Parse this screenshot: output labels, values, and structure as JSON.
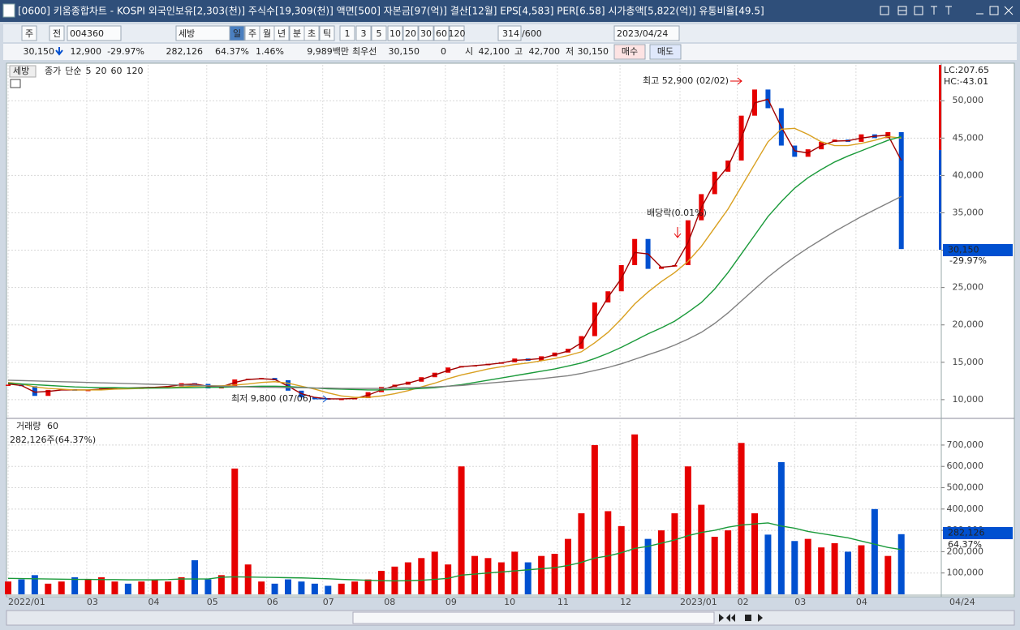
{
  "window": {
    "title": "[0600] 키움종합차트 - KOSPI 외국인보유[2,303(천)] 주식수[19,309(천)] 액면[500] 자본금[97(억)] 결산[12월] EPS[4,583] PER[6.58] 시가총액[5,822(억)] 유통비율[49.5]"
  },
  "toolbar": {
    "items": [
      "주",
      "전",
      "004360",
      "세방",
      "일",
      "주",
      "월",
      "년",
      "분",
      "초",
      "틱",
      "1",
      "3",
      "5",
      "10",
      "20",
      "30",
      "60",
      "120",
      "314",
      "/600",
      "2023/04/24"
    ]
  },
  "quote_bar": {
    "items": [
      "30,150",
      "12,900",
      "-29.97%",
      "282,126",
      "64.37%",
      "1.46%",
      "9,989백만",
      "최우선",
      "30,150",
      "0",
      "시",
      "42,100",
      "고",
      "42,700",
      "저",
      "30,150",
      "매수",
      "매도"
    ]
  },
  "chart_data": [
    {
      "type": "candlestick",
      "stock_tag": "세방",
      "legend_label": "단순",
      "xlim": [
        0,
        70
      ],
      "ylim": [
        7600,
        54800
      ],
      "yticks": [
        {
          "value": 10000,
          "label": "10,000"
        },
        {
          "value": 15000,
          "label": "15,000"
        },
        {
          "value": 20000,
          "label": "20,000"
        },
        {
          "value": 25000,
          "label": "25,000"
        },
        {
          "value": 30000,
          "label": "30,000"
        },
        {
          "value": 35000,
          "label": "35,000"
        },
        {
          "value": 40000,
          "label": "40,000"
        },
        {
          "value": 45000,
          "label": "45,000"
        },
        {
          "value": 50000,
          "label": "50,000"
        }
      ],
      "grid": true,
      "up_color": "#e60000",
      "down_color": "#0050d0",
      "right_labels": [
        "LC:207.65",
        "HC:-43.01",
        "30,150",
        "-29.97%"
      ],
      "annotations": [
        "최고 52,900 (02/02)",
        "최저 9,800 (07/06)",
        "배당락(0.01%)"
      ],
      "series": [
        {
          "name": "종가",
          "color": "#e60000",
          "values": [
            12000,
            11800,
            10500,
            11300,
            11400,
            11200,
            11300,
            11500,
            11600,
            11500,
            11600,
            11700,
            11800,
            12200,
            12100,
            11500,
            11800,
            12700,
            12800,
            12900,
            12600,
            11200,
            10300,
            10200,
            10000,
            10100,
            10200,
            11000,
            11700,
            12000,
            12400,
            13000,
            13600,
            14300,
            14500,
            14600,
            14800,
            15000,
            15500,
            15200,
            15800,
            16300,
            16800,
            18500,
            23000,
            24500,
            28000,
            31500,
            27500,
            27800,
            28000,
            34000,
            37500,
            40500,
            42000,
            48000,
            51500,
            49000,
            44000,
            42500,
            43500,
            44500,
            44800,
            44500,
            45500,
            45000,
            45800,
            30150
          ]
        },
        {
          "name": "5",
          "color": "#a00000",
          "values": [
            12100,
            11900,
            11000,
            11100,
            11300,
            11300,
            11300,
            11400,
            11550,
            11550,
            11600,
            11650,
            11750,
            12000,
            12100,
            11800,
            11700,
            12300,
            12700,
            12800,
            12700,
            11800,
            10800,
            10300,
            10100,
            10100,
            10150,
            10600,
            11300,
            11850,
            12200,
            12700,
            13300,
            13900,
            14400,
            14550,
            14700,
            14900,
            15250,
            15350,
            15500,
            16000,
            16500,
            17600,
            20700,
            23700,
            26200,
            29700,
            29500,
            27700,
            27900,
            31000,
            35700,
            39000,
            41200,
            45000,
            49700,
            50200,
            46500,
            43300,
            43000,
            44000,
            44600,
            44650,
            45000,
            45250,
            45400,
            42000
          ]
        },
        {
          "name": "20",
          "color": "#d9a020",
          "values": [
            12300,
            12100,
            11700,
            11500,
            11400,
            11300,
            11300,
            11300,
            11400,
            11450,
            11500,
            11550,
            11600,
            11700,
            11800,
            11850,
            11850,
            11950,
            12100,
            12300,
            12400,
            12200,
            11800,
            11400,
            10900,
            10500,
            10300,
            10300,
            10500,
            10800,
            11200,
            11700,
            12200,
            12800,
            13300,
            13700,
            14100,
            14400,
            14700,
            14900,
            15200,
            15500,
            15900,
            16400,
            17600,
            19000,
            20800,
            22800,
            24400,
            25800,
            27000,
            28500,
            30500,
            33000,
            35500,
            38500,
            41500,
            44500,
            46200,
            46300,
            45500,
            44500,
            44000,
            44000,
            44300,
            44700,
            45200,
            45000
          ]
        },
        {
          "name": "60",
          "color": "#1a9a3a",
          "values": [
            12200,
            12100,
            12000,
            11900,
            11800,
            11700,
            11650,
            11600,
            11600,
            11550,
            11550,
            11550,
            11550,
            11600,
            11600,
            11650,
            11650,
            11700,
            11750,
            11800,
            11800,
            11750,
            11650,
            11550,
            11450,
            11400,
            11350,
            11300,
            11300,
            11350,
            11400,
            11500,
            11600,
            11800,
            12000,
            12300,
            12600,
            12900,
            13200,
            13500,
            13800,
            14100,
            14500,
            14900,
            15500,
            16200,
            17000,
            17900,
            18800,
            19600,
            20500,
            21700,
            23000,
            24800,
            27000,
            29500,
            32000,
            34500,
            36500,
            38300,
            39700,
            40800,
            41800,
            42600,
            43300,
            44000,
            44700,
            45200
          ]
        },
        {
          "name": "120",
          "color": "#808080",
          "values": [
            12600,
            12550,
            12500,
            12450,
            12400,
            12350,
            12300,
            12250,
            12200,
            12150,
            12100,
            12050,
            12000,
            11950,
            11900,
            11850,
            11800,
            11750,
            11700,
            11650,
            11650,
            11600,
            11600,
            11550,
            11550,
            11500,
            11500,
            11500,
            11500,
            11550,
            11600,
            11650,
            11700,
            11800,
            11900,
            12050,
            12200,
            12350,
            12500,
            12650,
            12800,
            13000,
            13200,
            13500,
            13900,
            14300,
            14800,
            15400,
            16000,
            16600,
            17300,
            18100,
            19000,
            20200,
            21600,
            23200,
            24800,
            26400,
            27800,
            29100,
            30300,
            31400,
            32500,
            33500,
            34500,
            35400,
            36300,
            37200
          ]
        }
      ]
    },
    {
      "type": "bar",
      "xlim": [
        0,
        70
      ],
      "ylim": [
        0,
        810000
      ],
      "yticks": [
        {
          "value": 100000,
          "label": "100,000"
        },
        {
          "value": 200000,
          "label": "200,000"
        },
        {
          "value": 300000,
          "label": "300,000"
        },
        {
          "value": 400000,
          "label": "400,000"
        },
        {
          "value": 500000,
          "label": "500,000"
        },
        {
          "value": 600000,
          "label": "600,000"
        },
        {
          "value": 700000,
          "label": "700,000"
        }
      ],
      "xticks": [
        {
          "value": 0,
          "label": "2022/01"
        },
        {
          "value": 5.9,
          "label": "03"
        },
        {
          "value": 10.5,
          "label": "04"
        },
        {
          "value": 14.9,
          "label": "05"
        },
        {
          "value": 19.4,
          "label": "06"
        },
        {
          "value": 23.6,
          "label": "07"
        },
        {
          "value": 28.2,
          "label": "08"
        },
        {
          "value": 32.8,
          "label": "09"
        },
        {
          "value": 37.2,
          "label": "10"
        },
        {
          "value": 41.2,
          "label": "11"
        },
        {
          "value": 45.9,
          "label": "12"
        },
        {
          "value": 50.4,
          "label": "2023/01"
        },
        {
          "value": 54.7,
          "label": "02"
        },
        {
          "value": 59,
          "label": "03"
        },
        {
          "value": 63.6,
          "label": "04"
        }
      ],
      "cursor_date": "04/24",
      "grid": true,
      "summary": "282,126주(64.37%)",
      "right_labels": [
        "282,126",
        "64.37%"
      ],
      "series": [
        {
          "name": "거래량",
          "values": [
            60000,
            70000,
            90000,
            50000,
            60000,
            80000,
            70000,
            80000,
            60000,
            50000,
            60000,
            70000,
            60000,
            80000,
            160000,
            70000,
            90000,
            590000,
            140000,
            60000,
            50000,
            70000,
            60000,
            50000,
            40000,
            50000,
            60000,
            70000,
            110000,
            130000,
            150000,
            170000,
            200000,
            140000,
            600000,
            180000,
            170000,
            150000,
            200000,
            150000,
            180000,
            190000,
            260000,
            380000,
            700000,
            390000,
            320000,
            750000,
            260000,
            300000,
            380000,
            600000,
            420000,
            270000,
            300000,
            710000,
            380000,
            280000,
            620000,
            250000,
            260000,
            220000,
            240000,
            200000,
            230000,
            400000,
            180000,
            282126
          ]
        },
        {
          "name": "60",
          "color": "#1a9a3a",
          "values": [
            75000,
            74000,
            73000,
            72000,
            71000,
            70000,
            70000,
            69000,
            69000,
            68000,
            68000,
            68000,
            69000,
            72000,
            72000,
            72000,
            80000,
            82000,
            81000,
            80000,
            79000,
            78000,
            77000,
            75000,
            73000,
            70000,
            68000,
            66000,
            64000,
            63000,
            64000,
            66000,
            70000,
            75000,
            90000,
            95000,
            100000,
            105000,
            110000,
            115000,
            120000,
            125000,
            135000,
            150000,
            170000,
            180000,
            195000,
            215000,
            225000,
            240000,
            255000,
            275000,
            290000,
            300000,
            315000,
            325000,
            330000,
            335000,
            320000,
            310000,
            295000,
            285000,
            275000,
            265000,
            250000,
            235000,
            220000,
            210000
          ]
        }
      ]
    }
  ]
}
